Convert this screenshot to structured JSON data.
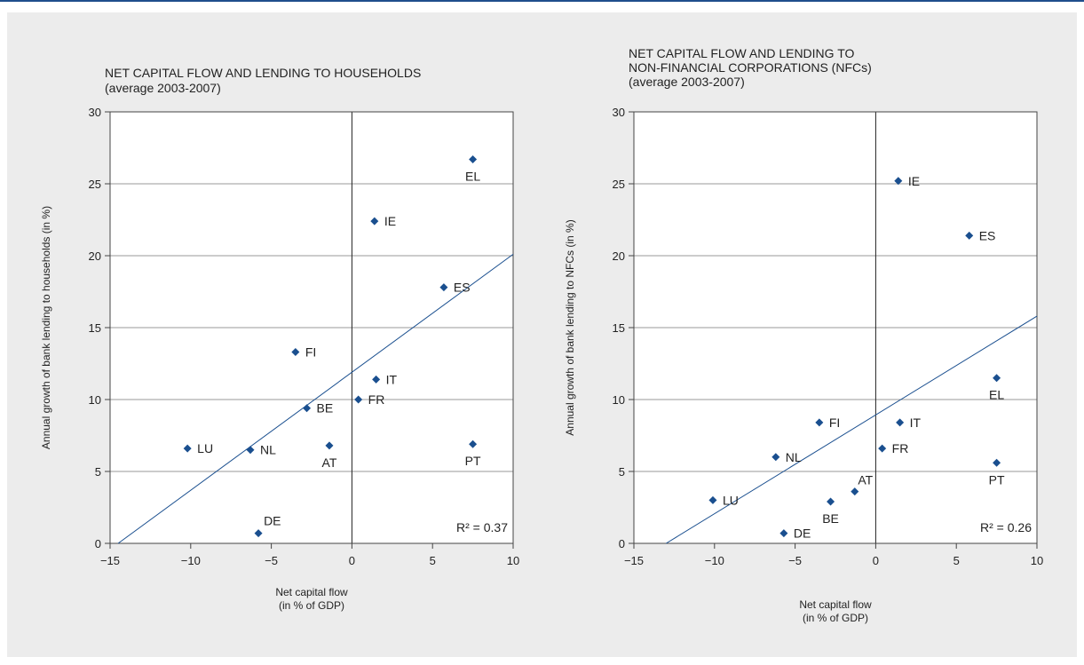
{
  "colors": {
    "marker": "#1a4f8f",
    "trend": "#1a4f8f",
    "grid": "#9a9a9a",
    "frame": "#444444",
    "top_rule": "#1f4e8c"
  },
  "chart_data": [
    {
      "type": "scatter",
      "title_lines": [
        "NET CAPITAL FLOW AND LENDING TO HOUSEHOLDS",
        "(average 2003-2007)"
      ],
      "xlabel_lines": [
        "Net capital flow",
        "(in % of GDP)"
      ],
      "ylabel": "Annual growth of bank lending to households (in %)",
      "xlim": [
        -15,
        10
      ],
      "ylim": [
        0,
        30
      ],
      "xticks": [
        -15,
        -10,
        -5,
        0,
        5,
        10
      ],
      "xtick_labels": [
        "−15",
        "−10",
        "−5",
        "0",
        "5",
        "10"
      ],
      "yticks": [
        0,
        5,
        10,
        15,
        20,
        25,
        30
      ],
      "ytick_labels": [
        "0",
        "5",
        "10",
        "15",
        "20",
        "25",
        "30"
      ],
      "grid": "horizontal",
      "zero_line": "vertical at x = 0",
      "r2_text": "R² = 0.37",
      "trendline": {
        "x": [
          -14.5,
          10
        ],
        "y": [
          0,
          20.1
        ]
      },
      "points": [
        {
          "label": "EL",
          "x": 7.5,
          "y": 26.7,
          "label_pos": "below"
        },
        {
          "label": "IE",
          "x": 1.4,
          "y": 22.4,
          "label_pos": "right"
        },
        {
          "label": "ES",
          "x": 5.7,
          "y": 17.8,
          "label_pos": "right"
        },
        {
          "label": "FI",
          "x": -3.5,
          "y": 13.3,
          "label_pos": "right"
        },
        {
          "label": "IT",
          "x": 1.5,
          "y": 11.4,
          "label_pos": "right"
        },
        {
          "label": "FR",
          "x": 0.4,
          "y": 10.0,
          "label_pos": "right"
        },
        {
          "label": "BE",
          "x": -2.8,
          "y": 9.4,
          "label_pos": "right"
        },
        {
          "label": "LU",
          "x": -10.2,
          "y": 6.6,
          "label_pos": "right"
        },
        {
          "label": "NL",
          "x": -6.3,
          "y": 6.5,
          "label_pos": "right"
        },
        {
          "label": "AT",
          "x": -1.4,
          "y": 6.8,
          "label_pos": "below"
        },
        {
          "label": "PT",
          "x": 7.5,
          "y": 6.9,
          "label_pos": "below"
        },
        {
          "label": "DE",
          "x": -5.8,
          "y": 0.7,
          "label_pos": "above-right"
        }
      ]
    },
    {
      "type": "scatter",
      "title_lines": [
        "NET CAPITAL FLOW AND LENDING TO",
        "NON-FINANCIAL CORPORATIONS (NFCs)",
        "(average 2003-2007)"
      ],
      "xlabel_lines": [
        "Net capital flow",
        "(in % of GDP)"
      ],
      "ylabel": "Annual growth of bank lending to NFCs (in %)",
      "xlim": [
        -15,
        10
      ],
      "ylim": [
        0,
        30
      ],
      "xticks": [
        -15,
        -10,
        -5,
        0,
        5,
        10
      ],
      "xtick_labels": [
        "−15",
        "−10",
        "−5",
        "0",
        "5",
        "10"
      ],
      "yticks": [
        0,
        5,
        10,
        15,
        20,
        25,
        30
      ],
      "ytick_labels": [
        "0",
        "5",
        "10",
        "15",
        "20",
        "25",
        "30"
      ],
      "grid": "horizontal",
      "zero_line": "vertical at x = 0",
      "r2_text": "R² = 0.26",
      "trendline": {
        "x": [
          -13.0,
          10
        ],
        "y": [
          0,
          15.8
        ]
      },
      "points": [
        {
          "label": "IE",
          "x": 1.4,
          "y": 25.2,
          "label_pos": "right"
        },
        {
          "label": "ES",
          "x": 5.8,
          "y": 21.4,
          "label_pos": "right"
        },
        {
          "label": "EL",
          "x": 7.5,
          "y": 11.5,
          "label_pos": "below"
        },
        {
          "label": "FI",
          "x": -3.5,
          "y": 8.4,
          "label_pos": "right"
        },
        {
          "label": "IT",
          "x": 1.5,
          "y": 8.4,
          "label_pos": "right"
        },
        {
          "label": "FR",
          "x": 0.4,
          "y": 6.6,
          "label_pos": "right"
        },
        {
          "label": "NL",
          "x": -6.2,
          "y": 6.0,
          "label_pos": "right"
        },
        {
          "label": "PT",
          "x": 7.5,
          "y": 5.6,
          "label_pos": "below"
        },
        {
          "label": "AT",
          "x": -1.3,
          "y": 3.6,
          "label_pos": "above"
        },
        {
          "label": "LU",
          "x": -10.1,
          "y": 3.0,
          "label_pos": "right"
        },
        {
          "label": "BE",
          "x": -2.8,
          "y": 2.9,
          "label_pos": "below"
        },
        {
          "label": "DE",
          "x": -5.7,
          "y": 0.7,
          "label_pos": "right"
        }
      ]
    }
  ]
}
